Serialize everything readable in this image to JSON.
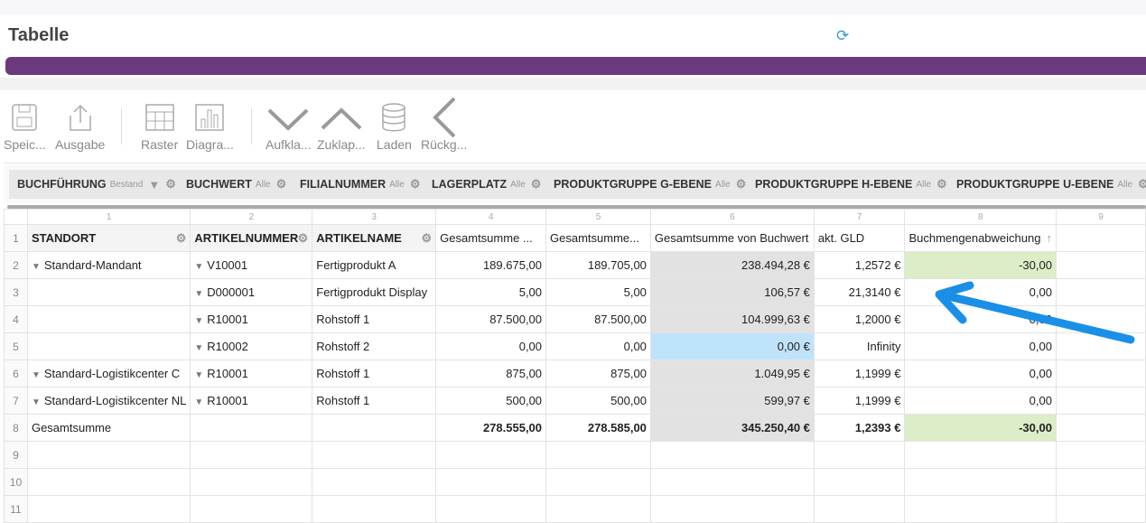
{
  "title": "Tabelle",
  "toolbar": [
    {
      "label": "Speic...",
      "icon": "save-icon"
    },
    {
      "label": "Ausgabe",
      "icon": "export-icon"
    },
    {
      "label": "Raster",
      "icon": "grid-icon"
    },
    {
      "label": "Diagra...",
      "icon": "chart-icon"
    },
    {
      "label": "Aufkla...",
      "icon": "expand-icon"
    },
    {
      "label": "Zuklap...",
      "icon": "collapse-icon"
    },
    {
      "label": "Laden",
      "icon": "database-icon"
    },
    {
      "label": "Rückg...",
      "icon": "undo-icon"
    }
  ],
  "filters": [
    {
      "name": "BUCHFÜHRUNG",
      "value": "Bestand"
    },
    {
      "name": "BUCHWERT",
      "value": "Alle"
    },
    {
      "name": "FILIALNUMMER",
      "value": "Alle"
    },
    {
      "name": "LAGERPLATZ",
      "value": "Alle"
    },
    {
      "name": "PRODUKTGRUPPE G-EBENE",
      "value": "Alle"
    },
    {
      "name": "PRODUKTGRUPPE H-EBENE",
      "value": "Alle"
    },
    {
      "name": "PRODUKTGRUPPE U-EBENE",
      "value": "Alle"
    }
  ],
  "colnums": [
    "1",
    "2",
    "3",
    "4",
    "5",
    "6",
    "7",
    "8",
    "9"
  ],
  "headers": [
    "STANDORT",
    "ARTIKELNUMMER",
    "ARTIKELNAME",
    "Gesamtsumme ...",
    "Gesamtsumme...",
    "Gesamtsumme von Buchwert",
    "akt. GLD",
    "Buchmengenabweichung"
  ],
  "rows": [
    [
      "Standard-Mandant",
      "V10001",
      "Fertigprodukt A",
      "189.675,00",
      "189.705,00",
      "238.494,28 €",
      "1,2572 €",
      "-30,00"
    ],
    [
      "",
      "D000001",
      "Fertigprodukt Display",
      "5,00",
      "5,00",
      "106,57 €",
      "21,3140 €",
      "0,00"
    ],
    [
      "",
      "R10001",
      "Rohstoff 1",
      "87.500,00",
      "87.500,00",
      "104.999,63 €",
      "1,2000 €",
      "0,00"
    ],
    [
      "",
      "R10002",
      "Rohstoff 2",
      "0,00",
      "0,00",
      "0,00 €",
      "Infinity",
      "0,00"
    ],
    [
      "Standard-Logistikcenter C",
      "R10001",
      "Rohstoff 1",
      "875,00",
      "875,00",
      "1.049,95 €",
      "1,1999 €",
      "0,00"
    ],
    [
      "Standard-Logistikcenter NL",
      "R10001",
      "Rohstoff 1",
      "500,00",
      "500,00",
      "599,97 €",
      "1,1999 €",
      "0,00"
    ]
  ],
  "total": [
    "Gesamtsumme",
    "",
    "",
    "278.555,00",
    "278.585,00",
    "345.250,40 €",
    "1,2393 €",
    "-30,00"
  ],
  "rownums": [
    "1",
    "2",
    "3",
    "4",
    "5",
    "6",
    "7",
    "8",
    "9",
    "10",
    "11"
  ],
  "colors": {
    "accent": "#6b3a7e",
    "arrow": "#1a8fe8",
    "highlight_green": "#dcedc8",
    "highlight_blue": "#bfe3fb"
  }
}
